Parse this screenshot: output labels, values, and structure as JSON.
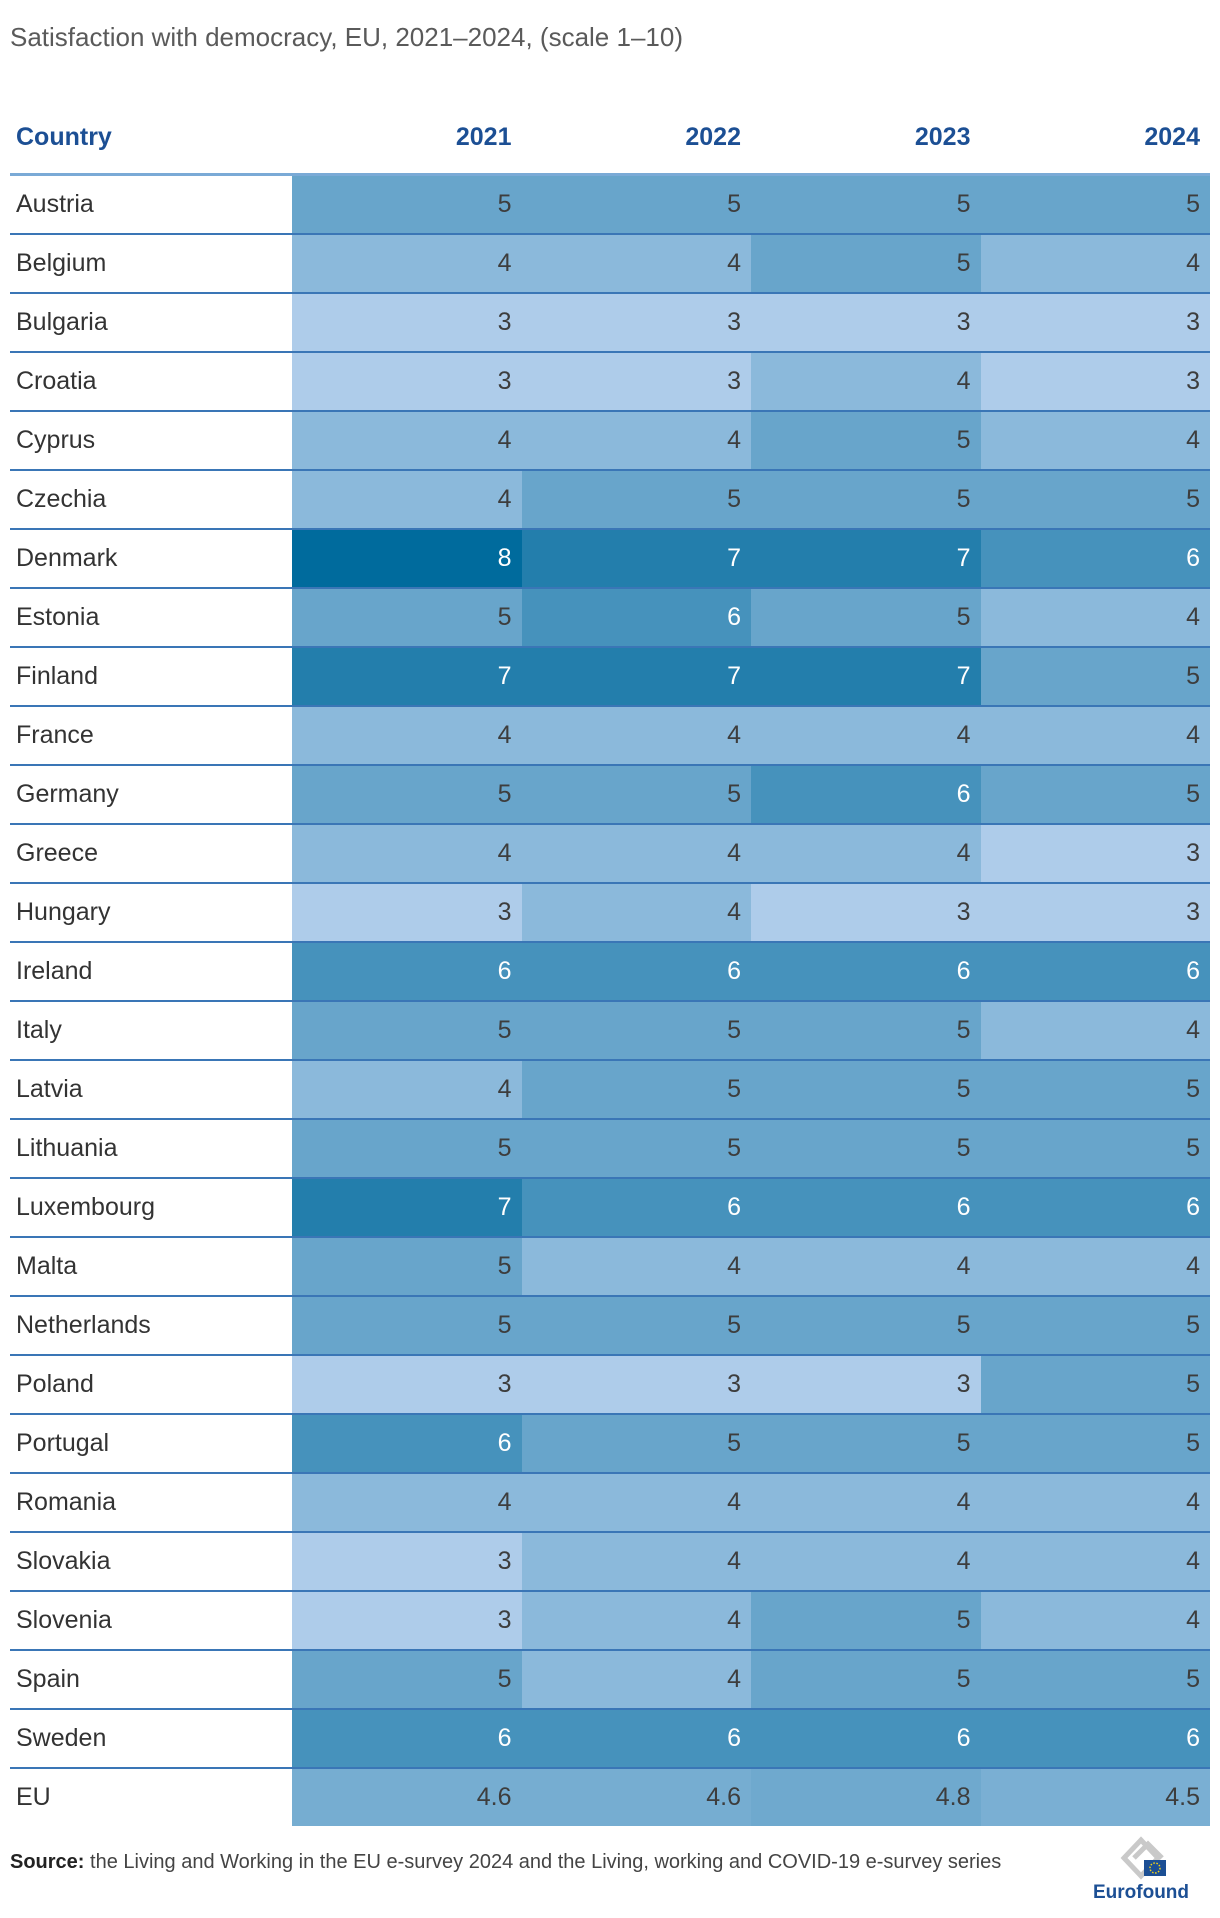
{
  "title": "Satisfaction with democracy, EU, 2021–2024, (scale 1–10)",
  "chart_data": {
    "type": "heatmap",
    "title": "Satisfaction with democracy, EU, 2021–2024, (scale 1–10)",
    "row_header": "Country",
    "columns": [
      "2021",
      "2022",
      "2023",
      "2024"
    ],
    "value_range": [
      1,
      10
    ],
    "color_low": "#aeccea",
    "color_high": "#006b9d",
    "rows": [
      {
        "label": "Austria",
        "values": [
          5,
          5,
          5,
          5
        ]
      },
      {
        "label": "Belgium",
        "values": [
          4,
          4,
          5,
          4
        ]
      },
      {
        "label": "Bulgaria",
        "values": [
          3,
          3,
          3,
          3
        ]
      },
      {
        "label": "Croatia",
        "values": [
          3,
          3,
          4,
          3
        ]
      },
      {
        "label": "Cyprus",
        "values": [
          4,
          4,
          5,
          4
        ]
      },
      {
        "label": "Czechia",
        "values": [
          4,
          5,
          5,
          5
        ]
      },
      {
        "label": "Denmark",
        "values": [
          8,
          7,
          7,
          6
        ]
      },
      {
        "label": "Estonia",
        "values": [
          5,
          6,
          5,
          4
        ]
      },
      {
        "label": "Finland",
        "values": [
          7,
          7,
          7,
          5
        ]
      },
      {
        "label": "France",
        "values": [
          4,
          4,
          4,
          4
        ]
      },
      {
        "label": "Germany",
        "values": [
          5,
          5,
          6,
          5
        ]
      },
      {
        "label": "Greece",
        "values": [
          4,
          4,
          4,
          3
        ]
      },
      {
        "label": "Hungary",
        "values": [
          3,
          4,
          3,
          3
        ]
      },
      {
        "label": "Ireland",
        "values": [
          6,
          6,
          6,
          6
        ]
      },
      {
        "label": "Italy",
        "values": [
          5,
          5,
          5,
          4
        ]
      },
      {
        "label": "Latvia",
        "values": [
          4,
          5,
          5,
          5
        ]
      },
      {
        "label": "Lithuania",
        "values": [
          5,
          5,
          5,
          5
        ]
      },
      {
        "label": "Luxembourg",
        "values": [
          7,
          6,
          6,
          6
        ]
      },
      {
        "label": "Malta",
        "values": [
          5,
          4,
          4,
          4
        ]
      },
      {
        "label": "Netherlands",
        "values": [
          5,
          5,
          5,
          5
        ]
      },
      {
        "label": "Poland",
        "values": [
          3,
          3,
          3,
          5
        ]
      },
      {
        "label": "Portugal",
        "values": [
          6,
          5,
          5,
          5
        ]
      },
      {
        "label": "Romania",
        "values": [
          4,
          4,
          4,
          4
        ]
      },
      {
        "label": "Slovakia",
        "values": [
          3,
          4,
          4,
          4
        ]
      },
      {
        "label": "Slovenia",
        "values": [
          3,
          4,
          5,
          4
        ]
      },
      {
        "label": "Spain",
        "values": [
          5,
          4,
          5,
          5
        ]
      },
      {
        "label": "Sweden",
        "values": [
          6,
          6,
          6,
          6
        ]
      },
      {
        "label": "EU",
        "values": [
          4.6,
          4.6,
          4.8,
          4.5
        ]
      }
    ]
  },
  "source": {
    "label": "Source:",
    "text": " the Living and Working in the EU e-survey 2024 and the Living, working and COVID-19 e-survey series"
  },
  "logo": {
    "text": "Eurofound",
    "icon": "eurofound-logo-icon"
  }
}
